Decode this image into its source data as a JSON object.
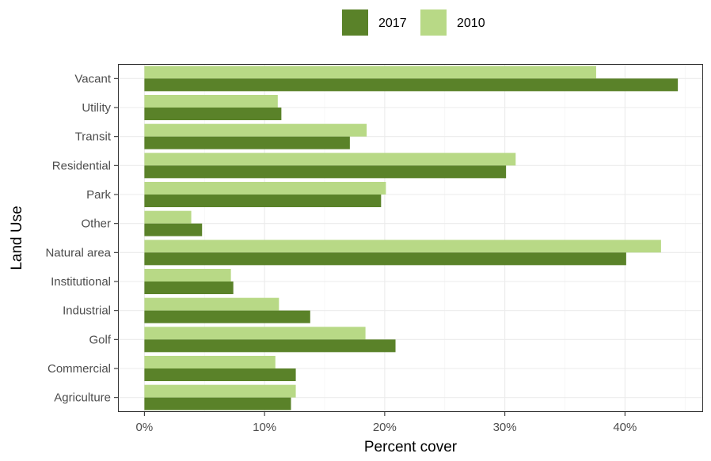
{
  "chart_data": {
    "type": "bar",
    "orientation": "horizontal",
    "categories": [
      "Agriculture",
      "Commercial",
      "Golf",
      "Industrial",
      "Institutional",
      "Natural area",
      "Other",
      "Park",
      "Residential",
      "Transit",
      "Utility",
      "Vacant"
    ],
    "series": [
      {
        "name": "2017",
        "color": "#5a8229",
        "values": [
          12.2,
          12.6,
          20.9,
          13.8,
          7.4,
          40.1,
          4.8,
          19.7,
          30.1,
          17.1,
          11.4,
          44.4
        ]
      },
      {
        "name": "2010",
        "color": "#b8d986",
        "values": [
          12.6,
          10.9,
          18.4,
          11.2,
          7.2,
          43.0,
          3.9,
          20.1,
          30.9,
          18.5,
          11.1,
          37.6
        ]
      }
    ],
    "xlabel": "Percent cover",
    "ylabel": "Land Use",
    "xlim": [
      -2.2,
      46.5
    ],
    "xticks": [
      0,
      10,
      20,
      30,
      40
    ],
    "xtick_labels": [
      "0%",
      "10%",
      "20%",
      "30%",
      "40%"
    ],
    "grid": true,
    "legend_position": "top"
  }
}
